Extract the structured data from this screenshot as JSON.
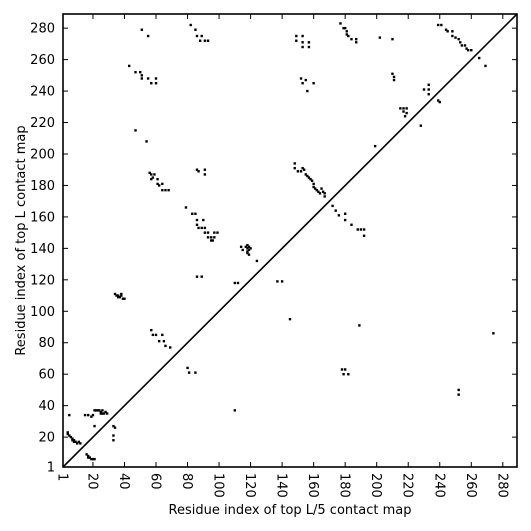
{
  "chart_data": {
    "type": "scatter",
    "title": "",
    "xlabel": "Residue index of top L/5 contact map",
    "ylabel": "Residue index of top L contact map",
    "xlim": [
      1,
      289
    ],
    "ylim": [
      1,
      289
    ],
    "xticks": [
      1,
      20,
      40,
      60,
      80,
      100,
      120,
      140,
      160,
      180,
      200,
      220,
      240,
      260,
      280
    ],
    "yticks": [
      1,
      20,
      40,
      60,
      80,
      100,
      120,
      140,
      160,
      180,
      200,
      220,
      240,
      260,
      280
    ],
    "grid": false,
    "diagonal": [
      [
        1,
        1
      ],
      [
        289,
        289
      ]
    ],
    "series": [
      {
        "marker": "square",
        "color": "#000000",
        "points": [
          [
            4,
            23
          ],
          [
            4,
            22
          ],
          [
            5,
            21
          ],
          [
            6,
            20
          ],
          [
            7,
            19
          ],
          [
            7,
            18
          ],
          [
            8,
            18
          ],
          [
            8,
            17
          ],
          [
            9,
            17
          ],
          [
            10,
            16
          ],
          [
            11,
            17
          ],
          [
            12,
            16
          ],
          [
            5,
            34
          ],
          [
            16,
            9
          ],
          [
            17,
            8
          ],
          [
            17,
            7
          ],
          [
            18,
            7
          ],
          [
            19,
            6
          ],
          [
            20,
            6
          ],
          [
            21,
            6
          ],
          [
            15,
            34
          ],
          [
            17,
            34
          ],
          [
            19,
            33
          ],
          [
            20,
            34
          ],
          [
            21,
            37
          ],
          [
            22,
            37
          ],
          [
            23,
            37
          ],
          [
            24,
            37
          ],
          [
            25,
            36
          ],
          [
            25,
            35
          ],
          [
            26,
            37
          ],
          [
            26,
            35
          ],
          [
            27,
            35
          ],
          [
            28,
            36
          ],
          [
            29,
            35
          ],
          [
            21,
            27
          ],
          [
            33,
            27
          ],
          [
            34,
            26
          ],
          [
            33,
            21
          ],
          [
            33,
            18
          ],
          [
            34,
            111
          ],
          [
            35,
            110
          ],
          [
            36,
            110
          ],
          [
            37,
            109
          ],
          [
            38,
            110
          ],
          [
            39,
            108
          ],
          [
            40,
            108
          ],
          [
            36,
            109
          ],
          [
            38,
            111
          ],
          [
            43,
            256
          ],
          [
            47,
            252
          ],
          [
            50,
            252
          ],
          [
            51,
            250
          ],
          [
            51,
            248
          ],
          [
            55,
            248
          ],
          [
            57,
            245
          ],
          [
            60,
            248
          ],
          [
            60,
            245
          ],
          [
            47,
            215
          ],
          [
            54,
            208
          ],
          [
            51,
            279
          ],
          [
            55,
            275
          ],
          [
            56,
            188
          ],
          [
            57,
            187
          ],
          [
            57,
            184
          ],
          [
            58,
            185
          ],
          [
            59,
            187
          ],
          [
            61,
            184
          ],
          [
            61,
            181
          ],
          [
            62,
            180
          ],
          [
            64,
            181
          ],
          [
            64,
            177
          ],
          [
            66,
            177
          ],
          [
            68,
            177
          ],
          [
            57,
            88
          ],
          [
            58,
            85
          ],
          [
            60,
            85
          ],
          [
            62,
            81
          ],
          [
            64,
            85
          ],
          [
            65,
            81
          ],
          [
            66,
            78
          ],
          [
            69,
            77
          ],
          [
            80,
            64
          ],
          [
            81,
            61
          ],
          [
            85,
            61
          ],
          [
            86,
            122
          ],
          [
            89,
            122
          ],
          [
            79,
            166
          ],
          [
            83,
            162
          ],
          [
            85,
            162
          ],
          [
            86,
            158
          ],
          [
            86,
            155
          ],
          [
            87,
            153
          ],
          [
            89,
            153
          ],
          [
            91,
            153
          ],
          [
            91,
            150
          ],
          [
            93,
            150
          ],
          [
            93,
            147
          ],
          [
            95,
            147
          ],
          [
            95,
            145
          ],
          [
            96,
            145
          ],
          [
            97,
            147
          ],
          [
            97,
            150
          ],
          [
            99,
            150
          ],
          [
            90,
            158
          ],
          [
            86,
            190
          ],
          [
            87,
            189
          ],
          [
            91,
            190
          ],
          [
            91,
            187
          ],
          [
            82,
            282
          ],
          [
            85,
            279
          ],
          [
            86,
            275
          ],
          [
            88,
            272
          ],
          [
            89,
            275
          ],
          [
            91,
            272
          ],
          [
            93,
            272
          ],
          [
            110,
            118
          ],
          [
            112,
            118
          ],
          [
            114,
            141
          ],
          [
            115,
            139
          ],
          [
            117,
            141
          ],
          [
            118,
            142
          ],
          [
            118,
            140
          ],
          [
            118,
            138
          ],
          [
            118,
            137
          ],
          [
            119,
            141
          ],
          [
            119,
            139
          ],
          [
            119,
            136
          ],
          [
            120,
            140
          ],
          [
            124,
            132
          ],
          [
            110,
            37
          ],
          [
            137,
            119
          ],
          [
            140,
            119
          ],
          [
            145,
            95
          ],
          [
            148,
            194
          ],
          [
            148,
            191
          ],
          [
            150,
            189
          ],
          [
            152,
            189
          ],
          [
            153,
            191
          ],
          [
            154,
            190
          ],
          [
            155,
            187
          ],
          [
            156,
            186
          ],
          [
            157,
            185
          ],
          [
            158,
            184
          ],
          [
            159,
            183
          ],
          [
            160,
            181
          ],
          [
            160,
            179
          ],
          [
            161,
            178
          ],
          [
            162,
            177
          ],
          [
            163,
            176
          ],
          [
            164,
            175
          ],
          [
            165,
            178
          ],
          [
            166,
            176
          ],
          [
            167,
            175
          ],
          [
            167,
            173
          ],
          [
            149,
            275
          ],
          [
            149,
            272
          ],
          [
            153,
            275
          ],
          [
            153,
            271
          ],
          [
            153,
            268
          ],
          [
            157,
            271
          ],
          [
            157,
            268
          ],
          [
            152,
            248
          ],
          [
            153,
            245
          ],
          [
            155,
            247
          ],
          [
            156,
            240
          ],
          [
            160,
            245
          ],
          [
            172,
            167
          ],
          [
            174,
            164
          ],
          [
            176,
            161
          ],
          [
            180,
            162
          ],
          [
            180,
            158
          ],
          [
            184,
            155
          ],
          [
            188,
            152
          ],
          [
            190,
            152
          ],
          [
            192,
            148
          ],
          [
            192,
            152
          ],
          [
            178,
            63
          ],
          [
            179,
            60
          ],
          [
            180,
            63
          ],
          [
            182,
            60
          ],
          [
            189,
            91
          ],
          [
            177,
            283
          ],
          [
            179,
            280
          ],
          [
            180,
            280
          ],
          [
            181,
            278
          ],
          [
            181,
            276
          ],
          [
            182,
            275
          ],
          [
            184,
            273
          ],
          [
            187,
            273
          ],
          [
            187,
            271
          ],
          [
            199,
            205
          ],
          [
            202,
            274
          ],
          [
            210,
            273
          ],
          [
            210,
            251
          ],
          [
            211,
            249
          ],
          [
            211,
            247
          ],
          [
            215,
            229
          ],
          [
            217,
            229
          ],
          [
            217,
            227
          ],
          [
            218,
            224
          ],
          [
            219,
            229
          ],
          [
            219,
            226
          ],
          [
            228,
            218
          ],
          [
            230,
            241
          ],
          [
            233,
            244
          ],
          [
            233,
            241
          ],
          [
            233,
            238
          ],
          [
            239,
            234
          ],
          [
            240,
            233
          ],
          [
            239,
            282
          ],
          [
            241,
            282
          ],
          [
            244,
            279
          ],
          [
            245,
            278
          ],
          [
            248,
            278
          ],
          [
            248,
            275
          ],
          [
            250,
            274
          ],
          [
            252,
            273
          ],
          [
            253,
            271
          ],
          [
            254,
            269
          ],
          [
            256,
            269
          ],
          [
            257,
            267
          ],
          [
            258,
            266
          ],
          [
            260,
            266
          ],
          [
            265,
            261
          ],
          [
            269,
            256
          ],
          [
            252,
            50
          ],
          [
            252,
            47
          ],
          [
            274,
            86
          ]
        ]
      }
    ]
  }
}
